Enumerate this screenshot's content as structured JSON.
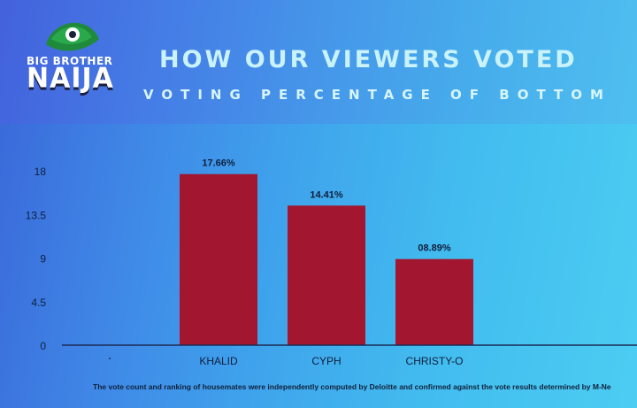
{
  "header": {
    "logo_title": "BIG BROTHER",
    "logo_word": "NAIJA",
    "headline": "HOW OUR VIEWERS VOTED",
    "subheadline": "VOTING PERCENTAGE OF BOTTOM"
  },
  "footnote": "The vote count and ranking of housemates were independently computed by Deloitte and confirmed against the vote results determined by M-Ne",
  "colors": {
    "bar": "#a3162f",
    "axis": "#1b2a55",
    "label": "#0f1f3d"
  },
  "chart_data": {
    "type": "bar",
    "categories": [
      "KHALID",
      "CYPH",
      "CHRISTY-O"
    ],
    "values": [
      17.66,
      14.41,
      8.89
    ],
    "data_labels": [
      "17.66%",
      "14.41%",
      "08.89%"
    ],
    "yticks": [
      0,
      4.5,
      9,
      13.5,
      18
    ],
    "ytick_labels": [
      "0",
      "4.5",
      "9",
      "13.5",
      "18"
    ],
    "ylim": [
      0,
      18
    ],
    "x_origin_label": "·",
    "grid": false,
    "legend": "none"
  }
}
